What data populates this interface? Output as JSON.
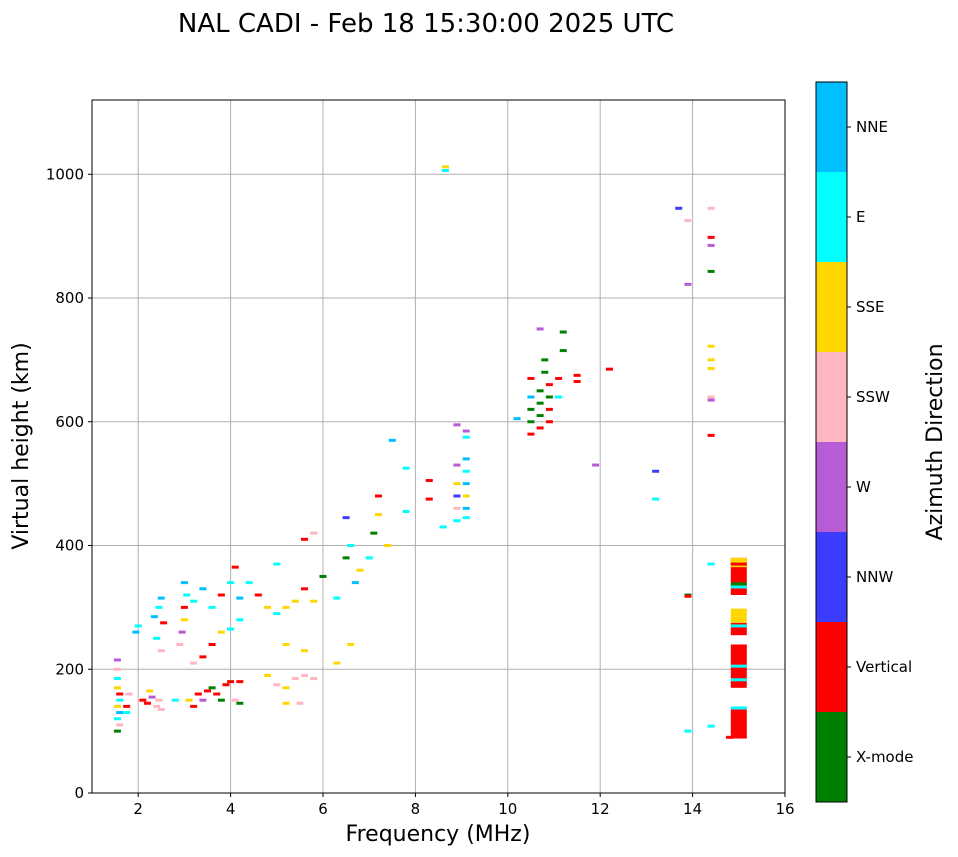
{
  "chart_data": {
    "type": "scatter",
    "title": "NAL CADI - Feb 18 15:30:00 2025 UTC",
    "xlabel": "Frequency (MHz)",
    "ylabel": "Virtual height (km)",
    "xlim": [
      1,
      16
    ],
    "ylim": [
      0,
      1120
    ],
    "xticks": [
      2,
      4,
      6,
      8,
      10,
      12,
      14,
      16
    ],
    "yticks": [
      0,
      200,
      400,
      600,
      800,
      1000
    ],
    "grid": true,
    "colorbar": {
      "label": "Azimuth Direction",
      "categories": [
        {
          "name": "X-mode",
          "color": "#008000"
        },
        {
          "name": "Vertical",
          "color": "#ff0000"
        },
        {
          "name": "NNW",
          "color": "#3c3cff"
        },
        {
          "name": "W",
          "color": "#b85cd6"
        },
        {
          "name": "SSW",
          "color": "#ffb6c1"
        },
        {
          "name": "SSE",
          "color": "#ffd700"
        },
        {
          "name": "E",
          "color": "#00ffff"
        },
        {
          "name": "NNE",
          "color": "#00bfff"
        }
      ]
    },
    "points": [
      {
        "f": 1.55,
        "h": 215,
        "d": "W"
      },
      {
        "f": 1.55,
        "h": 200,
        "d": "SSW"
      },
      {
        "f": 1.55,
        "h": 185,
        "d": "E"
      },
      {
        "f": 1.55,
        "h": 170,
        "d": "SSE"
      },
      {
        "f": 1.6,
        "h": 160,
        "d": "Vertical"
      },
      {
        "f": 1.6,
        "h": 150,
        "d": "E"
      },
      {
        "f": 1.55,
        "h": 140,
        "d": "SSE"
      },
      {
        "f": 1.6,
        "h": 130,
        "d": "NNE"
      },
      {
        "f": 1.55,
        "h": 120,
        "d": "E"
      },
      {
        "f": 1.6,
        "h": 110,
        "d": "SSW"
      },
      {
        "f": 1.55,
        "h": 100,
        "d": "X-mode"
      },
      {
        "f": 1.75,
        "h": 140,
        "d": "Vertical"
      },
      {
        "f": 1.75,
        "h": 130,
        "d": "E"
      },
      {
        "f": 1.8,
        "h": 160,
        "d": "SSW"
      },
      {
        "f": 1.95,
        "h": 260,
        "d": "NNE"
      },
      {
        "f": 2.0,
        "h": 270,
        "d": "E"
      },
      {
        "f": 2.1,
        "h": 150,
        "d": "Vertical"
      },
      {
        "f": 2.2,
        "h": 145,
        "d": "Vertical"
      },
      {
        "f": 2.25,
        "h": 165,
        "d": "SSE"
      },
      {
        "f": 2.3,
        "h": 155,
        "d": "W"
      },
      {
        "f": 2.4,
        "h": 140,
        "d": "SSW"
      },
      {
        "f": 2.45,
        "h": 150,
        "d": "SSW"
      },
      {
        "f": 2.5,
        "h": 135,
        "d": "SSW"
      },
      {
        "f": 2.35,
        "h": 285,
        "d": "NNE"
      },
      {
        "f": 2.45,
        "h": 300,
        "d": "E"
      },
      {
        "f": 2.5,
        "h": 315,
        "d": "NNE"
      },
      {
        "f": 2.55,
        "h": 275,
        "d": "Vertical"
      },
      {
        "f": 2.4,
        "h": 250,
        "d": "E"
      },
      {
        "f": 2.5,
        "h": 230,
        "d": "SSW"
      },
      {
        "f": 2.8,
        "h": 150,
        "d": "E"
      },
      {
        "f": 2.9,
        "h": 240,
        "d": "SSW"
      },
      {
        "f": 2.95,
        "h": 260,
        "d": "W"
      },
      {
        "f": 3.0,
        "h": 280,
        "d": "SSE"
      },
      {
        "f": 3.0,
        "h": 300,
        "d": "Vertical"
      },
      {
        "f": 3.05,
        "h": 320,
        "d": "E"
      },
      {
        "f": 3.0,
        "h": 340,
        "d": "NNE"
      },
      {
        "f": 3.1,
        "h": 150,
        "d": "SSE"
      },
      {
        "f": 3.2,
        "h": 140,
        "d": "Vertical"
      },
      {
        "f": 3.3,
        "h": 160,
        "d": "Vertical"
      },
      {
        "f": 3.4,
        "h": 150,
        "d": "W"
      },
      {
        "f": 3.5,
        "h": 165,
        "d": "Vertical"
      },
      {
        "f": 3.6,
        "h": 170,
        "d": "X-mode"
      },
      {
        "f": 3.7,
        "h": 160,
        "d": "Vertical"
      },
      {
        "f": 3.8,
        "h": 150,
        "d": "X-mode"
      },
      {
        "f": 3.9,
        "h": 175,
        "d": "Vertical"
      },
      {
        "f": 4.0,
        "h": 180,
        "d": "Vertical"
      },
      {
        "f": 4.1,
        "h": 150,
        "d": "SSW"
      },
      {
        "f": 4.2,
        "h": 145,
        "d": "X-mode"
      },
      {
        "f": 4.2,
        "h": 180,
        "d": "Vertical"
      },
      {
        "f": 3.2,
        "h": 210,
        "d": "SSW"
      },
      {
        "f": 3.4,
        "h": 220,
        "d": "Vertical"
      },
      {
        "f": 3.6,
        "h": 240,
        "d": "Vertical"
      },
      {
        "f": 3.8,
        "h": 260,
        "d": "SSE"
      },
      {
        "f": 4.0,
        "h": 265,
        "d": "E"
      },
      {
        "f": 3.2,
        "h": 310,
        "d": "E"
      },
      {
        "f": 3.4,
        "h": 330,
        "d": "NNE"
      },
      {
        "f": 3.6,
        "h": 300,
        "d": "E"
      },
      {
        "f": 3.8,
        "h": 320,
        "d": "Vertical"
      },
      {
        "f": 4.0,
        "h": 340,
        "d": "E"
      },
      {
        "f": 4.1,
        "h": 365,
        "d": "Vertical"
      },
      {
        "f": 4.2,
        "h": 315,
        "d": "NNE"
      },
      {
        "f": 4.2,
        "h": 280,
        "d": "E"
      },
      {
        "f": 4.4,
        "h": 340,
        "d": "E"
      },
      {
        "f": 4.6,
        "h": 320,
        "d": "Vertical"
      },
      {
        "f": 4.8,
        "h": 300,
        "d": "SSE"
      },
      {
        "f": 5.0,
        "h": 290,
        "d": "E"
      },
      {
        "f": 5.2,
        "h": 300,
        "d": "SSE"
      },
      {
        "f": 5.0,
        "h": 370,
        "d": "E"
      },
      {
        "f": 5.4,
        "h": 310,
        "d": "SSE"
      },
      {
        "f": 5.6,
        "h": 330,
        "d": "Vertical"
      },
      {
        "f": 5.8,
        "h": 310,
        "d": "SSE"
      },
      {
        "f": 4.8,
        "h": 190,
        "d": "SSE"
      },
      {
        "f": 5.0,
        "h": 175,
        "d": "SSW"
      },
      {
        "f": 5.2,
        "h": 170,
        "d": "SSE"
      },
      {
        "f": 5.4,
        "h": 185,
        "d": "SSW"
      },
      {
        "f": 5.6,
        "h": 190,
        "d": "SSW"
      },
      {
        "f": 5.8,
        "h": 185,
        "d": "SSW"
      },
      {
        "f": 5.2,
        "h": 145,
        "d": "SSE"
      },
      {
        "f": 5.5,
        "h": 145,
        "d": "SSW"
      },
      {
        "f": 5.2,
        "h": 240,
        "d": "SSE"
      },
      {
        "f": 5.6,
        "h": 230,
        "d": "SSE"
      },
      {
        "f": 5.8,
        "h": 420,
        "d": "SSW"
      },
      {
        "f": 5.6,
        "h": 410,
        "d": "Vertical"
      },
      {
        "f": 6.0,
        "h": 350,
        "d": "X-mode"
      },
      {
        "f": 6.3,
        "h": 315,
        "d": "E"
      },
      {
        "f": 6.3,
        "h": 210,
        "d": "SSE"
      },
      {
        "f": 6.5,
        "h": 380,
        "d": "X-mode"
      },
      {
        "f": 6.5,
        "h": 445,
        "d": "NNW"
      },
      {
        "f": 6.6,
        "h": 400,
        "d": "E"
      },
      {
        "f": 6.7,
        "h": 340,
        "d": "NNE"
      },
      {
        "f": 6.8,
        "h": 360,
        "d": "SSE"
      },
      {
        "f": 6.6,
        "h": 240,
        "d": "SSE"
      },
      {
        "f": 7.0,
        "h": 380,
        "d": "E"
      },
      {
        "f": 7.1,
        "h": 420,
        "d": "X-mode"
      },
      {
        "f": 7.2,
        "h": 480,
        "d": "Vertical"
      },
      {
        "f": 7.2,
        "h": 450,
        "d": "SSE"
      },
      {
        "f": 7.4,
        "h": 400,
        "d": "SSE"
      },
      {
        "f": 7.5,
        "h": 570,
        "d": "NNE"
      },
      {
        "f": 7.8,
        "h": 525,
        "d": "E"
      },
      {
        "f": 7.8,
        "h": 455,
        "d": "E"
      },
      {
        "f": 8.3,
        "h": 505,
        "d": "Vertical"
      },
      {
        "f": 8.3,
        "h": 475,
        "d": "Vertical"
      },
      {
        "f": 8.6,
        "h": 430,
        "d": "E"
      },
      {
        "f": 8.65,
        "h": 1012,
        "d": "SSE"
      },
      {
        "f": 8.65,
        "h": 1006,
        "d": "E"
      },
      {
        "f": 8.9,
        "h": 595,
        "d": "W"
      },
      {
        "f": 8.9,
        "h": 530,
        "d": "W"
      },
      {
        "f": 8.9,
        "h": 500,
        "d": "SSE"
      },
      {
        "f": 8.9,
        "h": 480,
        "d": "NNW"
      },
      {
        "f": 8.9,
        "h": 460,
        "d": "SSW"
      },
      {
        "f": 8.9,
        "h": 440,
        "d": "E"
      },
      {
        "f": 9.1,
        "h": 585,
        "d": "W"
      },
      {
        "f": 9.1,
        "h": 575,
        "d": "E"
      },
      {
        "f": 9.1,
        "h": 540,
        "d": "NNE"
      },
      {
        "f": 9.1,
        "h": 520,
        "d": "E"
      },
      {
        "f": 9.1,
        "h": 500,
        "d": "NNE"
      },
      {
        "f": 9.1,
        "h": 480,
        "d": "SSE"
      },
      {
        "f": 9.1,
        "h": 460,
        "d": "NNE"
      },
      {
        "f": 9.1,
        "h": 445,
        "d": "E"
      },
      {
        "f": 10.2,
        "h": 605,
        "d": "NNE"
      },
      {
        "f": 10.5,
        "h": 580,
        "d": "Vertical"
      },
      {
        "f": 10.5,
        "h": 600,
        "d": "X-mode"
      },
      {
        "f": 10.5,
        "h": 620,
        "d": "X-mode"
      },
      {
        "f": 10.5,
        "h": 640,
        "d": "NNE"
      },
      {
        "f": 10.5,
        "h": 670,
        "d": "Vertical"
      },
      {
        "f": 10.7,
        "h": 590,
        "d": "Vertical"
      },
      {
        "f": 10.7,
        "h": 610,
        "d": "X-mode"
      },
      {
        "f": 10.7,
        "h": 630,
        "d": "X-mode"
      },
      {
        "f": 10.7,
        "h": 650,
        "d": "X-mode"
      },
      {
        "f": 10.7,
        "h": 750,
        "d": "W"
      },
      {
        "f": 10.8,
        "h": 680,
        "d": "X-mode"
      },
      {
        "f": 10.8,
        "h": 700,
        "d": "X-mode"
      },
      {
        "f": 10.9,
        "h": 600,
        "d": "Vertical"
      },
      {
        "f": 10.9,
        "h": 620,
        "d": "Vertical"
      },
      {
        "f": 10.9,
        "h": 640,
        "d": "X-mode"
      },
      {
        "f": 10.9,
        "h": 660,
        "d": "Vertical"
      },
      {
        "f": 11.1,
        "h": 640,
        "d": "E"
      },
      {
        "f": 11.1,
        "h": 670,
        "d": "Vertical"
      },
      {
        "f": 11.2,
        "h": 715,
        "d": "X-mode"
      },
      {
        "f": 11.2,
        "h": 745,
        "d": "X-mode"
      },
      {
        "f": 11.5,
        "h": 665,
        "d": "Vertical"
      },
      {
        "f": 11.5,
        "h": 675,
        "d": "Vertical"
      },
      {
        "f": 11.9,
        "h": 530,
        "d": "W"
      },
      {
        "f": 12.2,
        "h": 685,
        "d": "Vertical"
      },
      {
        "f": 13.2,
        "h": 520,
        "d": "NNW"
      },
      {
        "f": 13.2,
        "h": 475,
        "d": "E"
      },
      {
        "f": 13.7,
        "h": 945,
        "d": "NNW"
      },
      {
        "f": 13.9,
        "h": 925,
        "d": "SSW"
      },
      {
        "f": 13.9,
        "h": 822,
        "d": "W"
      },
      {
        "f": 13.9,
        "h": 320,
        "d": "X-mode"
      },
      {
        "f": 13.9,
        "h": 318,
        "d": "Vertical"
      },
      {
        "f": 13.9,
        "h": 100,
        "d": "E"
      },
      {
        "f": 14.4,
        "h": 945,
        "d": "SSW"
      },
      {
        "f": 14.4,
        "h": 898,
        "d": "Vertical"
      },
      {
        "f": 14.4,
        "h": 885,
        "d": "W"
      },
      {
        "f": 14.4,
        "h": 843,
        "d": "X-mode"
      },
      {
        "f": 14.4,
        "h": 722,
        "d": "SSE"
      },
      {
        "f": 14.4,
        "h": 700,
        "d": "SSE"
      },
      {
        "f": 14.4,
        "h": 686,
        "d": "SSE"
      },
      {
        "f": 14.4,
        "h": 640,
        "d": "SSW"
      },
      {
        "f": 14.4,
        "h": 635,
        "d": "W"
      },
      {
        "f": 14.4,
        "h": 578,
        "d": "Vertical"
      },
      {
        "f": 14.4,
        "h": 370,
        "d": "E"
      },
      {
        "f": 14.4,
        "h": 108,
        "d": "E"
      },
      {
        "f": 14.8,
        "h": 90,
        "d": "Vertical"
      }
    ],
    "columns": [
      {
        "f": 15.0,
        "h0": 88,
        "h1": 135,
        "d": "Vertical"
      },
      {
        "f": 15.0,
        "h0": 135,
        "h1": 140,
        "d": "E"
      },
      {
        "f": 15.0,
        "h0": 170,
        "h1": 240,
        "d": "Vertical"
      },
      {
        "f": 15.0,
        "h0": 255,
        "h1": 275,
        "d": "Vertical"
      },
      {
        "f": 15.0,
        "h0": 275,
        "h1": 285,
        "d": "SSE"
      },
      {
        "f": 15.0,
        "h0": 285,
        "h1": 298,
        "d": "SSE"
      },
      {
        "f": 15.0,
        "h0": 320,
        "h1": 380,
        "d": "Vertical"
      },
      {
        "f": 15.0,
        "h0": 365,
        "h1": 380,
        "d": "SSE"
      }
    ],
    "column_stripes": [
      {
        "f": 15.0,
        "h": 183,
        "d": "E"
      },
      {
        "f": 15.0,
        "h": 205,
        "d": "E"
      },
      {
        "f": 15.0,
        "h": 270,
        "d": "E"
      },
      {
        "f": 15.0,
        "h": 333,
        "d": "E"
      },
      {
        "f": 15.0,
        "h": 338,
        "d": "X-mode"
      },
      {
        "f": 15.0,
        "h": 370,
        "d": "Vertical"
      }
    ]
  }
}
